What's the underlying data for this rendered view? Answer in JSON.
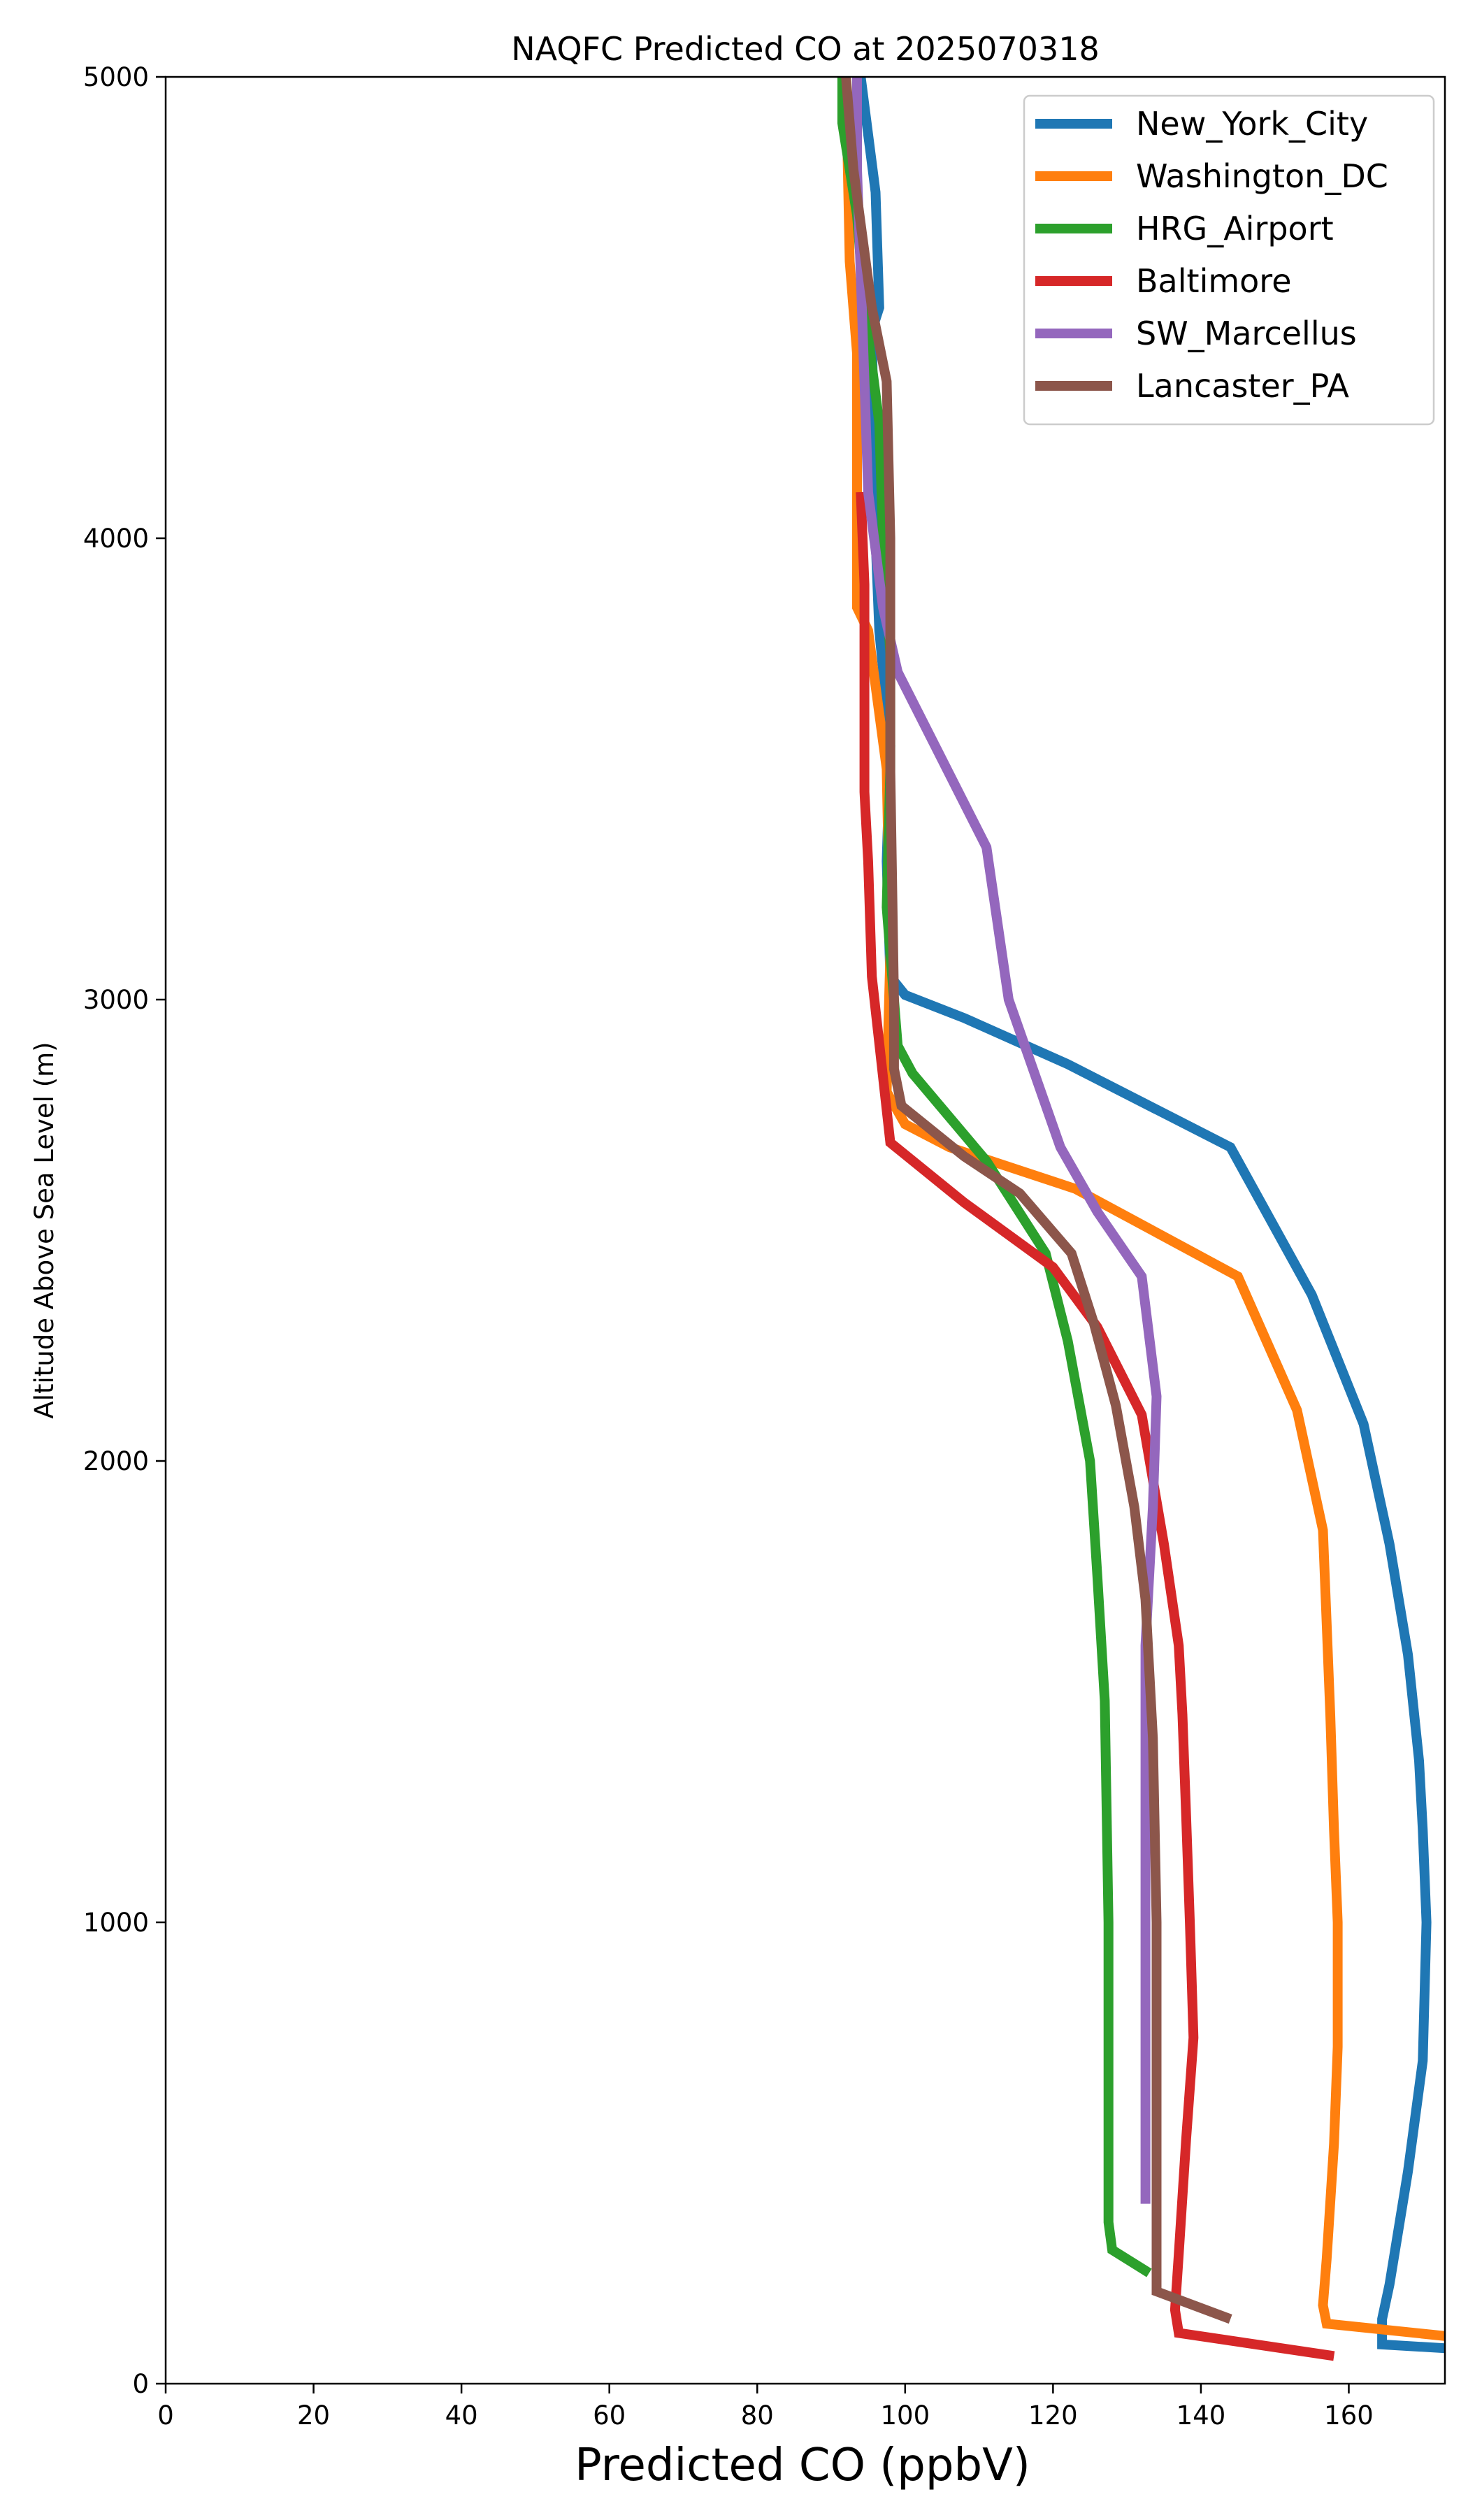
{
  "chart_data": {
    "type": "line",
    "title": "NAQFC Predicted CO at 2025070318",
    "xlabel": "Predicted CO (ppbV)",
    "ylabel": "Altitude Above Sea Level (m)",
    "xlim": [
      0,
      173
    ],
    "ylim": [
      0,
      5000
    ],
    "xticks": [
      0,
      20,
      40,
      60,
      80,
      100,
      120,
      140,
      160
    ],
    "yticks": [
      0,
      1000,
      2000,
      3000,
      4000,
      5000
    ],
    "grid": false,
    "legend_position": "top-right",
    "series": [
      {
        "name": "New_York_City",
        "color": "#1f77b4",
        "points": [
          [
            175,
            75
          ],
          [
            164.5,
            85
          ],
          [
            164.5,
            140
          ],
          [
            165.5,
            215
          ],
          [
            168,
            460
          ],
          [
            170,
            700
          ],
          [
            170.5,
            1000
          ],
          [
            170,
            1200
          ],
          [
            169.5,
            1350
          ],
          [
            168,
            1580
          ],
          [
            165.5,
            1820
          ],
          [
            162,
            2080
          ],
          [
            155,
            2360
          ],
          [
            144,
            2680
          ],
          [
            122,
            2860
          ],
          [
            108,
            2960
          ],
          [
            100,
            3010
          ],
          [
            98,
            3050
          ],
          [
            97.5,
            3300
          ],
          [
            98,
            3550
          ],
          [
            96.5,
            3800
          ],
          [
            96,
            4000
          ],
          [
            95.5,
            4450
          ],
          [
            96.5,
            4500
          ],
          [
            96,
            4750
          ],
          [
            94,
            5000
          ]
        ]
      },
      {
        "name": "Washington_DC",
        "color": "#ff7f0e",
        "points": [
          [
            175,
            100
          ],
          [
            157,
            130
          ],
          [
            156.5,
            170
          ],
          [
            157,
            270
          ],
          [
            158,
            520
          ],
          [
            158.5,
            730
          ],
          [
            158.5,
            1000
          ],
          [
            158,
            1200
          ],
          [
            157.5,
            1450
          ],
          [
            156.5,
            1850
          ],
          [
            153,
            2110
          ],
          [
            145,
            2400
          ],
          [
            123,
            2590
          ],
          [
            106,
            2680
          ],
          [
            100,
            2730
          ],
          [
            97.5,
            2800
          ],
          [
            98,
            3100
          ],
          [
            97.5,
            3500
          ],
          [
            95,
            3800
          ],
          [
            93.5,
            3850
          ],
          [
            93.5,
            4100
          ],
          [
            93.5,
            4400
          ],
          [
            92.5,
            4600
          ],
          [
            92,
            5000
          ]
        ]
      },
      {
        "name": "HRG_Airport",
        "color": "#2ca02c",
        "points": [
          [
            133,
            240
          ],
          [
            128,
            290
          ],
          [
            127.5,
            350
          ],
          [
            127.5,
            1000
          ],
          [
            127,
            1480
          ],
          [
            126,
            1750
          ],
          [
            125,
            2000
          ],
          [
            122,
            2260
          ],
          [
            119,
            2450
          ],
          [
            111,
            2650
          ],
          [
            101,
            2840
          ],
          [
            99,
            2900
          ],
          [
            98,
            3100
          ],
          [
            97.5,
            3200
          ],
          [
            98,
            3500
          ],
          [
            98,
            3750
          ],
          [
            97,
            4000
          ],
          [
            96.5,
            4250
          ],
          [
            94.5,
            4500
          ],
          [
            93.5,
            4700
          ],
          [
            91.5,
            4900
          ],
          [
            91.5,
            5000
          ]
        ]
      },
      {
        "name": "Baltimore",
        "color": "#d62728",
        "points": [
          [
            158,
            60
          ],
          [
            137,
            110
          ],
          [
            136.5,
            160
          ],
          [
            137,
            280
          ],
          [
            138,
            530
          ],
          [
            139,
            750
          ],
          [
            138.5,
            1000
          ],
          [
            138,
            1230
          ],
          [
            137.5,
            1450
          ],
          [
            137,
            1600
          ],
          [
            135,
            1820
          ],
          [
            132,
            2100
          ],
          [
            126,
            2290
          ],
          [
            120,
            2420
          ],
          [
            108,
            2560
          ],
          [
            98,
            2690
          ],
          [
            95.5,
            3050
          ],
          [
            95,
            3300
          ],
          [
            94.5,
            3450
          ],
          [
            94.5,
            3700
          ],
          [
            94.5,
            3900
          ],
          [
            94,
            4100
          ]
        ]
      },
      {
        "name": "SW_Marcellus",
        "color": "#9467bd",
        "points": [
          [
            132.5,
            390
          ],
          [
            132.5,
            1000
          ],
          [
            132.5,
            1600
          ],
          [
            133.5,
            1900
          ],
          [
            134,
            2140
          ],
          [
            132,
            2400
          ],
          [
            126,
            2540
          ],
          [
            121,
            2680
          ],
          [
            114,
            3000
          ],
          [
            111,
            3330
          ],
          [
            99,
            3710
          ],
          [
            97,
            3850
          ],
          [
            95,
            4100
          ],
          [
            94.5,
            4340
          ],
          [
            93.5,
            4800
          ],
          [
            93.5,
            5000
          ]
        ]
      },
      {
        "name": "Lancaster_PA",
        "color": "#8c564b",
        "points": [
          [
            144,
            140
          ],
          [
            134,
            200
          ],
          [
            134,
            400
          ],
          [
            134,
            1000
          ],
          [
            133.5,
            1400
          ],
          [
            132.5,
            1700
          ],
          [
            131,
            1900
          ],
          [
            128.5,
            2120
          ],
          [
            125.5,
            2300
          ],
          [
            122.5,
            2450
          ],
          [
            115.5,
            2580
          ],
          [
            108,
            2660
          ],
          [
            99.5,
            2770
          ],
          [
            98.5,
            2850
          ],
          [
            98.5,
            3000
          ],
          [
            98,
            3500
          ],
          [
            98,
            4000
          ],
          [
            97.5,
            4340
          ],
          [
            95.5,
            4500
          ],
          [
            93,
            4800
          ],
          [
            92,
            5000
          ]
        ]
      }
    ]
  }
}
